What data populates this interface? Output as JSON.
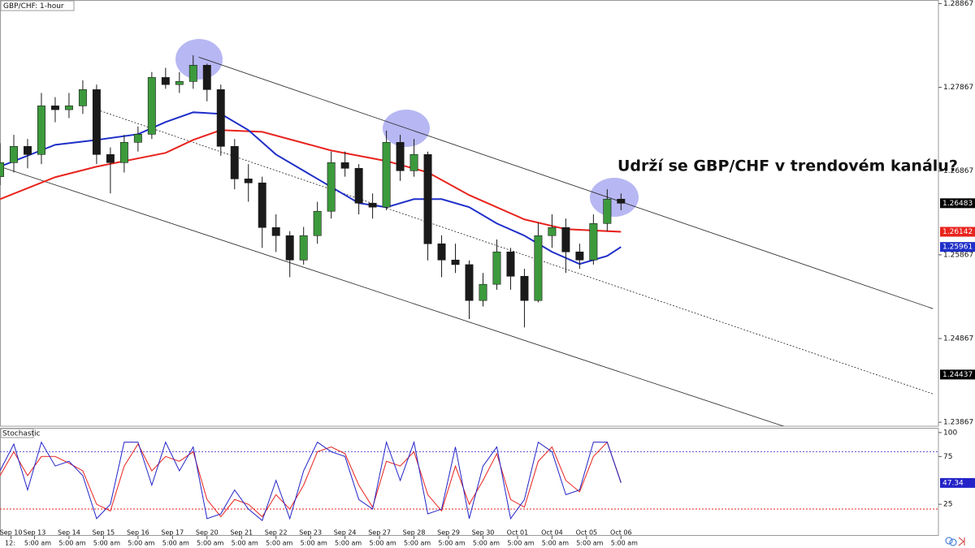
{
  "chart_data": [
    {
      "type": "candlestick",
      "title": "GBP/CHF: 1-hour",
      "annotation": "Udrží se GBP/CHF v trendovém kanálu?",
      "xlim": [
        0,
        68
      ],
      "ylim": [
        1.2382,
        1.2891
      ],
      "yticks": [
        1.28867,
        1.27867,
        1.26867,
        1.25867,
        1.24867,
        1.23867
      ],
      "up_color": "#3c9a3c",
      "down_color": "#1a1a1a",
      "open": [
        1.268,
        1.26968,
        1.27162,
        1.27065,
        1.27646,
        1.276,
        1.27646,
        1.2784,
        1.27065,
        1.26968,
        1.2721,
        1.27307,
        1.27985,
        1.279,
        1.27937,
        1.28131,
        1.2784,
        1.27162,
        1.26774,
        1.26726,
        1.26193,
        1.26096,
        1.25805,
        1.26096,
        1.26387,
        1.26968,
        1.269,
        1.26484,
        1.26436,
        1.2721,
        1.26871,
        1.27065,
        1.25999,
        1.25805,
        1.2575,
        1.25321,
        1.25515,
        1.25902,
        1.25611,
        1.25321,
        1.26096,
        1.26193,
        1.25902,
        1.25805,
        1.26241,
        1.26532
      ],
      "high": [
        1.272,
        1.273,
        1.2725,
        1.278,
        1.2775,
        1.278,
        1.2795,
        1.279,
        1.2715,
        1.273,
        1.274,
        1.2805,
        1.281,
        1.2805,
        1.2825,
        1.2815,
        1.279,
        1.2725,
        1.2695,
        1.268,
        1.2635,
        1.2615,
        1.262,
        1.265,
        1.271,
        1.271,
        1.2695,
        1.266,
        1.2735,
        1.273,
        1.2725,
        1.271,
        1.261,
        1.26,
        1.258,
        1.2565,
        1.2605,
        1.2595,
        1.257,
        1.2625,
        1.2635,
        1.263,
        1.26,
        1.2635,
        1.2665,
        1.266
      ],
      "low": [
        1.267,
        1.2685,
        1.269,
        1.2695,
        1.2745,
        1.275,
        1.2755,
        1.2695,
        1.266,
        1.2685,
        1.271,
        1.2725,
        1.2785,
        1.278,
        1.2785,
        1.277,
        1.2705,
        1.2665,
        1.265,
        1.2595,
        1.259,
        1.256,
        1.2575,
        1.26,
        1.263,
        1.268,
        1.2635,
        1.263,
        1.264,
        1.2675,
        1.268,
        1.258,
        1.256,
        1.2565,
        1.251,
        1.2525,
        1.2545,
        1.2545,
        1.25,
        1.253,
        1.2595,
        1.2565,
        1.257,
        1.2575,
        1.2615,
        1.264
      ],
      "close": [
        1.26968,
        1.27162,
        1.27065,
        1.27646,
        1.276,
        1.27646,
        1.2784,
        1.27065,
        1.26968,
        1.2721,
        1.27307,
        1.27985,
        1.279,
        1.27937,
        1.28131,
        1.2784,
        1.27162,
        1.26774,
        1.26726,
        1.26193,
        1.26096,
        1.25805,
        1.26096,
        1.26387,
        1.26968,
        1.269,
        1.26484,
        1.26436,
        1.2721,
        1.26871,
        1.27065,
        1.25999,
        1.25805,
        1.2575,
        1.25321,
        1.25515,
        1.25902,
        1.25611,
        1.25321,
        1.26096,
        1.26193,
        1.25902,
        1.25805,
        1.26241,
        1.26532,
        1.26483
      ],
      "series": [
        {
          "color": "#e8231d",
          "x": [
            0,
            4,
            7,
            12,
            14,
            16,
            19,
            24,
            28,
            31,
            34,
            38,
            41,
            45
          ],
          "values": [
            1.26532,
            1.26794,
            1.2692,
            1.27084,
            1.27239,
            1.27356,
            1.27336,
            1.27113,
            1.26987,
            1.26852,
            1.2658,
            1.2629,
            1.26173,
            1.26142
          ]
        },
        {
          "color": "#1f2fc8",
          "x": [
            0,
            4,
            7,
            10,
            12,
            14,
            16,
            18,
            20,
            23,
            26,
            28,
            30,
            32,
            34,
            36,
            38,
            40,
            42,
            44,
            45
          ],
          "values": [
            1.2692,
            1.27181,
            1.27239,
            1.27307,
            1.27453,
            1.27569,
            1.2755,
            1.27356,
            1.27065,
            1.26774,
            1.26484,
            1.26435,
            1.26532,
            1.26532,
            1.26436,
            1.26241,
            1.26096,
            1.25902,
            1.25757,
            1.25854,
            1.25961
          ]
        }
      ],
      "lines": [
        {
          "style": "solid",
          "x": [
            14.4,
            67.6
          ],
          "values": [
            1.28228,
            1.25224
          ]
        },
        {
          "style": "dotted",
          "x": [
            7.06,
            67.6
          ],
          "values": [
            1.27598,
            1.24206
          ]
        },
        {
          "style": "solid",
          "x": [
            0,
            56.8
          ],
          "values": [
            1.2692,
            1.23819
          ]
        }
      ],
      "price_labels": [
        {
          "value": 1.26483,
          "color": "#000000"
        },
        {
          "value": 1.26142,
          "color": "#e8231d"
        },
        {
          "value": 1.25961,
          "color": "#1f2fc8"
        },
        {
          "value": 1.24437,
          "color": "#000000"
        }
      ]
    },
    {
      "type": "line",
      "title": "Stochastic",
      "xlim": [
        0,
        68
      ],
      "ylim": [
        -8,
        105
      ],
      "yticks": [
        100,
        75,
        25
      ],
      "levels": [
        {
          "value": 80,
          "color": "#5a4fcf"
        },
        {
          "value": 20,
          "color": "#e8231d"
        }
      ],
      "series": [
        {
          "color": "#e8231d",
          "values": [
            55,
            80,
            55,
            75,
            75,
            68,
            60,
            25,
            18,
            65,
            88,
            60,
            75,
            70,
            80,
            30,
            12,
            30,
            25,
            12,
            35,
            20,
            45,
            80,
            85,
            78,
            45,
            22,
            70,
            65,
            80,
            35,
            18,
            65,
            25,
            50,
            78,
            30,
            22,
            70,
            85,
            50,
            38,
            75,
            90,
            48
          ]
        },
        {
          "color": "#2323c8",
          "values": [
            60,
            88,
            40,
            90,
            65,
            70,
            55,
            10,
            25,
            90,
            90,
            45,
            90,
            60,
            85,
            10,
            15,
            40,
            20,
            8,
            50,
            10,
            60,
            90,
            80,
            75,
            30,
            20,
            90,
            50,
            90,
            15,
            20,
            85,
            10,
            65,
            85,
            10,
            30,
            90,
            80,
            35,
            40,
            90,
            90,
            47.34
          ]
        }
      ],
      "value_label": {
        "value": 47.34,
        "color": "#2323c8"
      },
      "xticks": [
        {
          "value": 0.8,
          "label": "Sep 10"
        },
        {
          "value": 2.5,
          "label": "Sep 13"
        },
        {
          "value": 5,
          "label": "Sep 14"
        },
        {
          "value": 7.5,
          "label": "Sep 15"
        },
        {
          "value": 10,
          "label": "Sep 16"
        },
        {
          "value": 12.5,
          "label": "Sep 17"
        },
        {
          "value": 15,
          "label": "Sep 20"
        },
        {
          "value": 17.5,
          "label": "Sep 21"
        },
        {
          "value": 20,
          "label": "Sep 22"
        },
        {
          "value": 22.5,
          "label": "Sep 23"
        },
        {
          "value": 25,
          "label": "Sep 24"
        },
        {
          "value": 27.5,
          "label": "Sep 27"
        },
        {
          "value": 30,
          "label": "Sep 28"
        },
        {
          "value": 32.5,
          "label": "Sep 29"
        },
        {
          "value": 35,
          "label": "Sep 30"
        },
        {
          "value": 37.5,
          "label": "Oct 01"
        },
        {
          "value": 40,
          "label": "Oct 04"
        },
        {
          "value": 42.5,
          "label": "Oct 05"
        },
        {
          "value": 45,
          "label": "Oct 06"
        }
      ],
      "xtick_times": [
        {
          "value": 0.5,
          "label": "12:"
        },
        {
          "value": 2.5,
          "label": "5:00 am"
        },
        {
          "value": 5,
          "label": "5:00 am"
        },
        {
          "value": 7.5,
          "label": "5:00 am"
        },
        {
          "value": 10,
          "label": "5:00 am"
        },
        {
          "value": 12.5,
          "label": "5:00 am"
        },
        {
          "value": 15,
          "label": "5:00 am"
        },
        {
          "value": 17.5,
          "label": "5:00 am"
        },
        {
          "value": 20,
          "label": "5:00 am"
        },
        {
          "value": 22.5,
          "label": "5:00 am"
        },
        {
          "value": 25,
          "label": "5:00 am"
        },
        {
          "value": 27.5,
          "label": "5:00 am"
        },
        {
          "value": 30,
          "label": "5:00 am"
        },
        {
          "value": 32.5,
          "label": "5:00 am"
        },
        {
          "value": 35,
          "label": "5:00 am"
        },
        {
          "value": 37.5,
          "label": "5:00 am"
        },
        {
          "value": 40,
          "label": "5:00 am"
        },
        {
          "value": 42.5,
          "label": "5:00 am"
        },
        {
          "value": 45,
          "label": "5:00 am"
        }
      ]
    }
  ]
}
